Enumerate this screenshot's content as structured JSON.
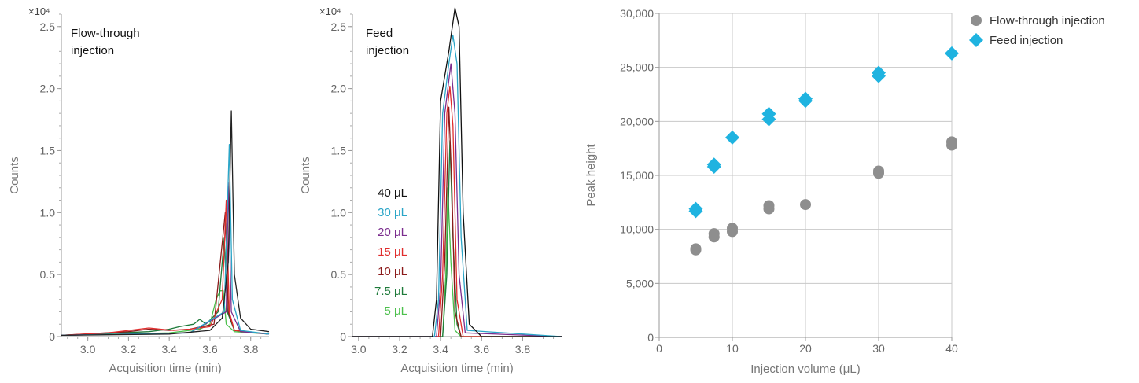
{
  "chart_data": [
    {
      "type": "line",
      "annotation": "Flow-through\ninjection",
      "multiplier_label": "×10⁴",
      "xlabel": "Acquisition time (min)",
      "ylabel": "Counts",
      "xlim": [
        2.87,
        3.89
      ],
      "ylim": [
        0,
        2.6
      ],
      "x_ticks": [
        "3.0",
        "3.2",
        "3.4",
        "3.6",
        "3.8"
      ],
      "y_ticks": [
        "0",
        "0.5",
        "1.0",
        "1.5",
        "2.0",
        "2.5"
      ],
      "series": [
        {
          "color": "#222222",
          "values": [
            [
              2.87,
              0.01
            ],
            [
              3.4,
              0.02
            ],
            [
              3.6,
              0.05
            ],
            [
              3.66,
              0.15
            ],
            [
              3.69,
              0.6
            ],
            [
              3.705,
              1.82
            ],
            [
              3.72,
              0.5
            ],
            [
              3.75,
              0.15
            ],
            [
              3.8,
              0.06
            ],
            [
              3.89,
              0.04
            ]
          ]
        },
        {
          "color": "#2aa5c7",
          "values": [
            [
              2.87,
              0.01
            ],
            [
              3.5,
              0.03
            ],
            [
              3.67,
              0.2
            ],
            [
              3.695,
              1.55
            ],
            [
              3.71,
              0.3
            ],
            [
              3.75,
              0.05
            ],
            [
              3.89,
              0.02
            ]
          ]
        },
        {
          "color": "#7b2d8e",
          "values": [
            [
              2.87,
              0.01
            ],
            [
              3.5,
              0.03
            ],
            [
              3.68,
              0.2
            ],
            [
              3.69,
              1.24
            ],
            [
              3.705,
              0.2
            ],
            [
              3.75,
              0.04
            ],
            [
              3.89,
              0.02
            ]
          ]
        },
        {
          "color": "#e02d2d",
          "values": [
            [
              2.87,
              0.01
            ],
            [
              3.1,
              0.03
            ],
            [
              3.2,
              0.05
            ],
            [
              3.3,
              0.07
            ],
            [
              3.42,
              0.05
            ],
            [
              3.5,
              0.06
            ],
            [
              3.6,
              0.08
            ],
            [
              3.66,
              0.3
            ],
            [
              3.68,
              1.1
            ],
            [
              3.695,
              0.2
            ],
            [
              3.72,
              0.05
            ],
            [
              3.89,
              0.02
            ]
          ]
        },
        {
          "color": "#8b1a1a",
          "values": [
            [
              2.87,
              0.01
            ],
            [
              3.2,
              0.04
            ],
            [
              3.3,
              0.06
            ],
            [
              3.4,
              0.05
            ],
            [
              3.5,
              0.06
            ],
            [
              3.62,
              0.1
            ],
            [
              3.675,
              1.0
            ],
            [
              3.69,
              0.2
            ],
            [
              3.72,
              0.05
            ],
            [
              3.89,
              0.02
            ]
          ]
        },
        {
          "color": "#1e7a3a",
          "values": [
            [
              2.87,
              0.01
            ],
            [
              3.3,
              0.04
            ],
            [
              3.4,
              0.06
            ],
            [
              3.45,
              0.08
            ],
            [
              3.52,
              0.1
            ],
            [
              3.55,
              0.14
            ],
            [
              3.58,
              0.1
            ],
            [
              3.64,
              0.2
            ],
            [
              3.67,
              0.8
            ],
            [
              3.685,
              0.2
            ],
            [
              3.72,
              0.05
            ],
            [
              3.89,
              0.02
            ]
          ]
        },
        {
          "color": "#4cc04c",
          "values": [
            [
              2.87,
              0.01
            ],
            [
              3.4,
              0.03
            ],
            [
              3.55,
              0.06
            ],
            [
              3.6,
              0.1
            ],
            [
              3.63,
              0.3
            ],
            [
              3.65,
              0.37
            ],
            [
              3.665,
              0.37
            ],
            [
              3.68,
              0.1
            ],
            [
              3.72,
              0.04
            ],
            [
              3.89,
              0.02
            ]
          ]
        }
      ]
    },
    {
      "type": "line",
      "annotation": "Feed\ninjection",
      "multiplier_label": "×10⁴",
      "xlabel": "Acquisition time (min)",
      "ylabel": "Counts",
      "xlim": [
        2.97,
        3.99
      ],
      "ylim": [
        0,
        2.6
      ],
      "x_ticks": [
        "3.0",
        "3.2",
        "3.4",
        "3.6",
        "3.8"
      ],
      "y_ticks": [
        "0",
        "0.5",
        "1.0",
        "1.5",
        "2.0",
        "2.5"
      ],
      "series": [
        {
          "name": "40 μL",
          "color": "#111111",
          "values": [
            [
              2.97,
              0
            ],
            [
              3.36,
              0
            ],
            [
              3.38,
              0.3
            ],
            [
              3.4,
              1.9
            ],
            [
              3.44,
              2.3
            ],
            [
              3.47,
              2.65
            ],
            [
              3.49,
              2.5
            ],
            [
              3.51,
              1.0
            ],
            [
              3.54,
              0.1
            ],
            [
              3.6,
              0
            ],
            [
              3.99,
              0
            ]
          ]
        },
        {
          "name": "30 μL",
          "color": "#2aa5c7",
          "values": [
            [
              2.97,
              0
            ],
            [
              3.37,
              0
            ],
            [
              3.39,
              0.3
            ],
            [
              3.41,
              1.8
            ],
            [
              3.44,
              2.2
            ],
            [
              3.46,
              2.43
            ],
            [
              3.48,
              2.2
            ],
            [
              3.5,
              0.8
            ],
            [
              3.53,
              0.05
            ],
            [
              3.99,
              0
            ]
          ]
        },
        {
          "name": "20 μL",
          "color": "#7b2d8e",
          "values": [
            [
              2.97,
              0
            ],
            [
              3.38,
              0
            ],
            [
              3.4,
              0.4
            ],
            [
              3.42,
              1.8
            ],
            [
              3.45,
              2.2
            ],
            [
              3.47,
              1.8
            ],
            [
              3.49,
              0.5
            ],
            [
              3.52,
              0.03
            ],
            [
              3.99,
              0
            ]
          ]
        },
        {
          "name": "15 μL",
          "color": "#e02d2d",
          "values": [
            [
              2.97,
              0
            ],
            [
              3.39,
              0
            ],
            [
              3.41,
              0.5
            ],
            [
              3.43,
              1.8
            ],
            [
              3.445,
              2.02
            ],
            [
              3.46,
              1.7
            ],
            [
              3.48,
              0.3
            ],
            [
              3.51,
              0
            ],
            [
              3.99,
              0
            ]
          ]
        },
        {
          "name": "10 μL",
          "color": "#8b1a1a",
          "values": [
            [
              2.97,
              0
            ],
            [
              3.4,
              0
            ],
            [
              3.42,
              0.6
            ],
            [
              3.44,
              1.85
            ],
            [
              3.455,
              1.2
            ],
            [
              3.47,
              0.2
            ],
            [
              3.5,
              0
            ],
            [
              3.99,
              0
            ]
          ]
        },
        {
          "name": "7.5 μL",
          "color": "#1e7a3a",
          "values": [
            [
              2.97,
              0
            ],
            [
              3.41,
              0
            ],
            [
              3.43,
              0.5
            ],
            [
              3.445,
              1.58
            ],
            [
              3.46,
              0.8
            ],
            [
              3.48,
              0.1
            ],
            [
              3.5,
              0
            ],
            [
              3.99,
              0
            ]
          ]
        },
        {
          "name": "5 μL",
          "color": "#4cc04c",
          "values": [
            [
              2.97,
              0
            ],
            [
              3.41,
              0
            ],
            [
              3.425,
              0.5
            ],
            [
              3.435,
              1.2
            ],
            [
              3.45,
              0.6
            ],
            [
              3.47,
              0.05
            ],
            [
              3.5,
              0
            ],
            [
              3.99,
              0
            ]
          ]
        }
      ]
    },
    {
      "type": "scatter",
      "xlabel": "Injection volume (μL)",
      "ylabel": "Peak height",
      "xlim": [
        0,
        40
      ],
      "ylim": [
        0,
        30000
      ],
      "x_ticks": [
        "0",
        "10",
        "20",
        "30",
        "40"
      ],
      "y_ticks": [
        "0",
        "5,000",
        "10,000",
        "15,000",
        "20,000",
        "25,000",
        "30,000"
      ],
      "grid": true,
      "legend_position": "top-right-outside",
      "series": [
        {
          "name": "Flow-through injection",
          "marker": "circle",
          "color": "#8e8e8e",
          "values": [
            [
              5,
              8100
            ],
            [
              5,
              8200
            ],
            [
              7.5,
              9300
            ],
            [
              7.5,
              9600
            ],
            [
              10,
              9800
            ],
            [
              10,
              10100
            ],
            [
              15,
              11900
            ],
            [
              15,
              12200
            ],
            [
              20,
              12300
            ],
            [
              30,
              15200
            ],
            [
              30,
              15400
            ],
            [
              40,
              17800
            ],
            [
              40,
              18100
            ]
          ]
        },
        {
          "name": "Feed injection",
          "marker": "diamond",
          "color": "#1fb3e0",
          "values": [
            [
              5,
              11700
            ],
            [
              5,
              11900
            ],
            [
              7.5,
              15800
            ],
            [
              7.5,
              16000
            ],
            [
              10,
              18500
            ],
            [
              15,
              20200
            ],
            [
              15,
              20700
            ],
            [
              20,
              21900
            ],
            [
              20,
              22100
            ],
            [
              30,
              24200
            ],
            [
              30,
              24500
            ],
            [
              40,
              26300
            ]
          ]
        }
      ]
    }
  ]
}
